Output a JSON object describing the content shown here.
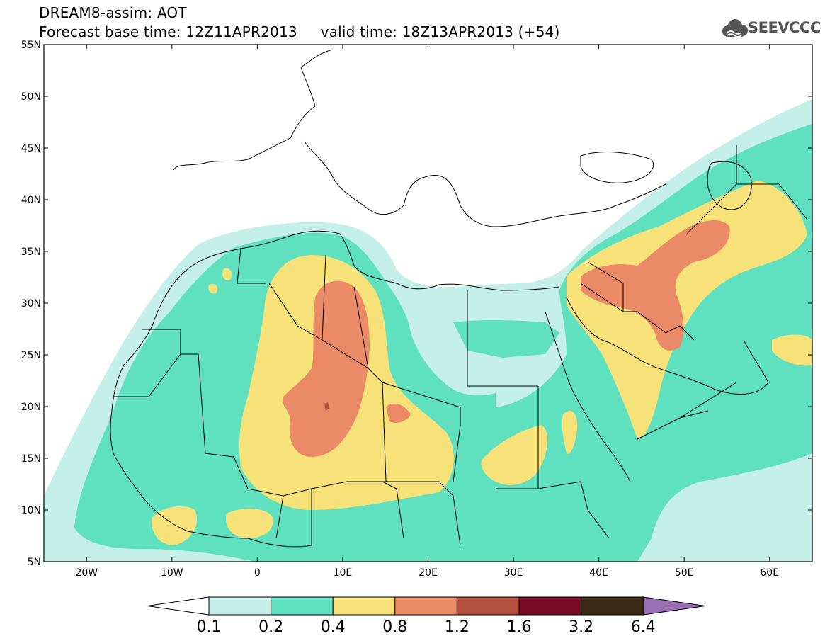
{
  "header": {
    "line1": "DREAM8-assim: AOT",
    "line2": "Forecast base time: 12Z11APR2013     valid time: 18Z13APR2013 (+54)",
    "logo_text": "SEEVCCC"
  },
  "map": {
    "lat_labels": [
      "55N",
      "50N",
      "45N",
      "40N",
      "35N",
      "30N",
      "25N",
      "20N",
      "15N",
      "10N",
      "5N"
    ],
    "lon_labels": [
      "20W",
      "10W",
      "0",
      "10E",
      "20E",
      "30E",
      "40E",
      "50E",
      "60E"
    ]
  },
  "colorbar": {
    "labels": [
      "0.1",
      "0.2",
      "0.4",
      "0.8",
      "1.2",
      "1.6",
      "3.2",
      "6.4"
    ],
    "colors": {
      "under": "#ffffff",
      "c1": "#c5f0ea",
      "c2": "#5fe0bf",
      "c3": "#f7e27a",
      "c4": "#ea8a66",
      "c5": "#b35040",
      "c6": "#7a0b27",
      "c7": "#3c2a16",
      "over": "#9b6fb5"
    }
  },
  "colors": {
    "c1": "#c5f0ea",
    "c2": "#5fe0bf",
    "c3": "#f7e27a",
    "c4": "#ea8a66"
  }
}
